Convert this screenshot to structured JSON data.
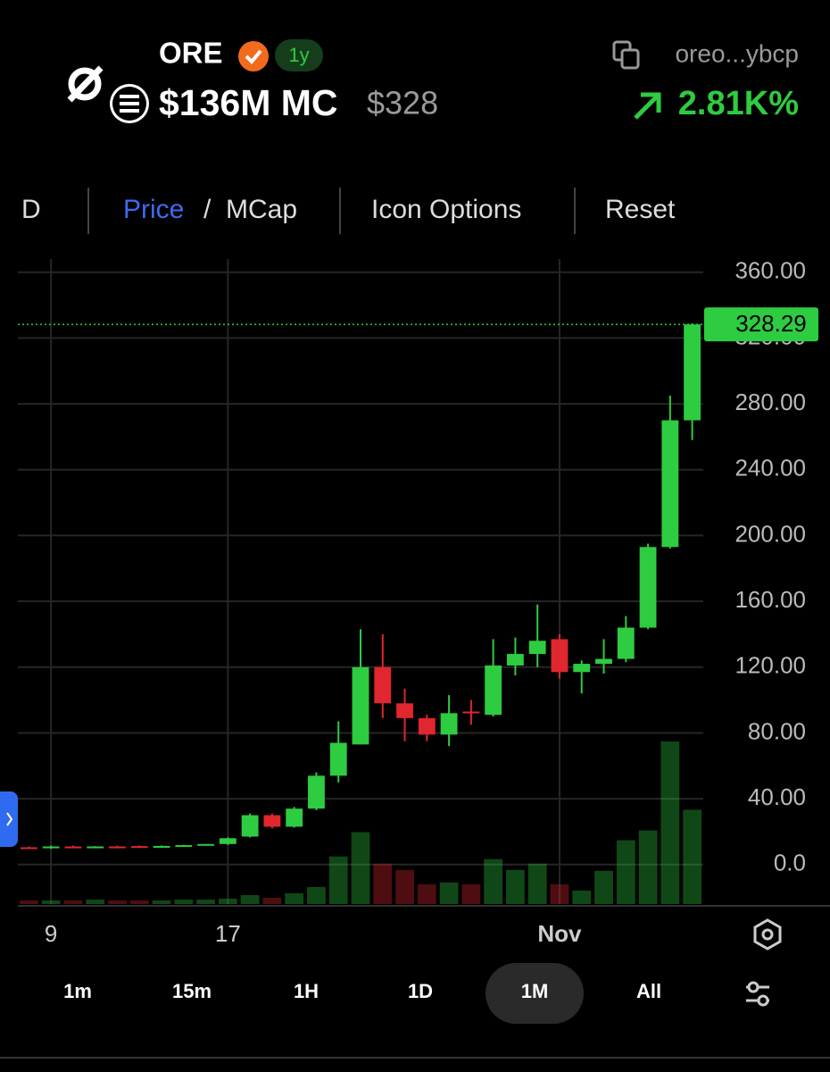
{
  "header": {
    "symbol": "ORE",
    "age": "1y",
    "market_cap": "$136M MC",
    "price": "$328",
    "address": "oreo...ybcp",
    "change": "2.81K%"
  },
  "toolbar": {
    "interval": "D",
    "price": "Price",
    "separator": "/",
    "mcap": "MCap",
    "icon_options": "Icon Options",
    "reset": "Reset"
  },
  "chart_data": {
    "type": "candlestick",
    "categories": [
      null,
      "9",
      null,
      null,
      null,
      null,
      null,
      null,
      null,
      "17",
      null,
      null,
      null,
      null,
      null,
      null,
      null,
      null,
      null,
      null,
      null,
      null,
      null,
      null,
      "Nov",
      null,
      null,
      null,
      null,
      null,
      null
    ],
    "open": [
      10.5,
      10,
      11,
      10.5,
      11,
      11.2,
      11,
      11.3,
      12,
      12.5,
      17,
      30,
      23,
      34,
      54,
      73,
      120,
      98,
      89,
      79,
      93,
      91,
      121,
      128,
      137,
      117,
      122,
      125,
      144,
      193,
      270
    ],
    "high": [
      11,
      11.5,
      11.5,
      11.2,
      11.5,
      11.6,
      11.6,
      12,
      12.5,
      16.5,
      31,
      31,
      35,
      56,
      87,
      143,
      140,
      107,
      91,
      103,
      100,
      137,
      138,
      158,
      140,
      124,
      137,
      151,
      195,
      285,
      329
    ],
    "low": [
      9.5,
      9.6,
      10.2,
      10,
      10.6,
      10.8,
      10.6,
      11,
      11.5,
      12,
      16.5,
      22,
      22.5,
      33,
      50,
      73,
      89,
      75,
      75,
      72,
      85,
      90,
      115,
      120,
      113,
      104,
      116,
      123,
      143,
      192,
      258
    ],
    "close": [
      10,
      11,
      10.5,
      11,
      10.8,
      11,
      11.3,
      11.8,
      12.5,
      16,
      30,
      23,
      34,
      54,
      74,
      120,
      98,
      89,
      79,
      92,
      92,
      121,
      128,
      136,
      117,
      122,
      125,
      144,
      193,
      270,
      328.29
    ],
    "volume": [
      4,
      4,
      4,
      5,
      4,
      4,
      4,
      5,
      5,
      6,
      10,
      7,
      12,
      19,
      53,
      80,
      45,
      38,
      22,
      24,
      22,
      50,
      38,
      45,
      22,
      15,
      37,
      71,
      82,
      181,
      105
    ],
    "current_price": 328.29,
    "up_color": "#2ecc40",
    "down_color": "#e0262f",
    "ylim": [
      -24,
      368
    ],
    "yticks": [
      {
        "value": 0,
        "label": "0.0"
      },
      {
        "value": 40,
        "label": "40.00"
      },
      {
        "value": 80,
        "label": "80.00"
      },
      {
        "value": 120,
        "label": "120.00"
      },
      {
        "value": 160,
        "label": "160.00"
      },
      {
        "value": 200,
        "label": "200.00"
      },
      {
        "value": 240,
        "label": "240.00"
      },
      {
        "value": 280,
        "label": "280.00"
      },
      {
        "value": 320,
        "label": "320.00"
      },
      {
        "value": 360,
        "label": "360.00"
      }
    ],
    "grid": true
  },
  "timeframes": {
    "options": [
      "1m",
      "15m",
      "1H",
      "1D",
      "1M",
      "All"
    ],
    "active": "1M"
  }
}
